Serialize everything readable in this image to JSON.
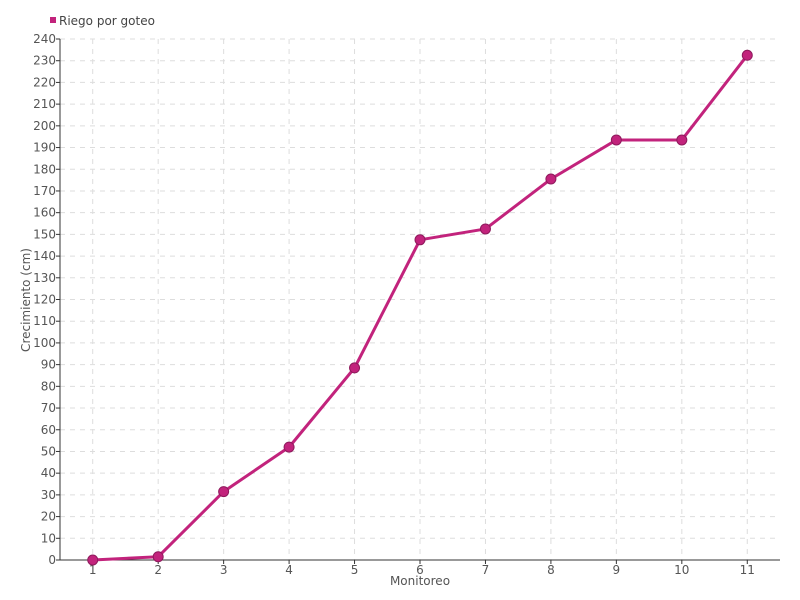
{
  "chart_data": {
    "type": "line",
    "title": "",
    "xlabel": "Monitoreo",
    "ylabel": "Crecimiento (cm)",
    "categories": [
      "1",
      "2",
      "3",
      "4",
      "5",
      "6",
      "7",
      "8",
      "9",
      "10",
      "11"
    ],
    "ylim": [
      0,
      240
    ],
    "ytick_step": 10,
    "grid": true,
    "legend_position": "top-left",
    "series": [
      {
        "name": "Riego por goteo",
        "color": "#c2237c",
        "values": [
          0,
          1.5,
          31.5,
          52,
          88.5,
          147.5,
          152.5,
          175.5,
          193.5,
          193.5,
          232.5
        ]
      }
    ]
  }
}
